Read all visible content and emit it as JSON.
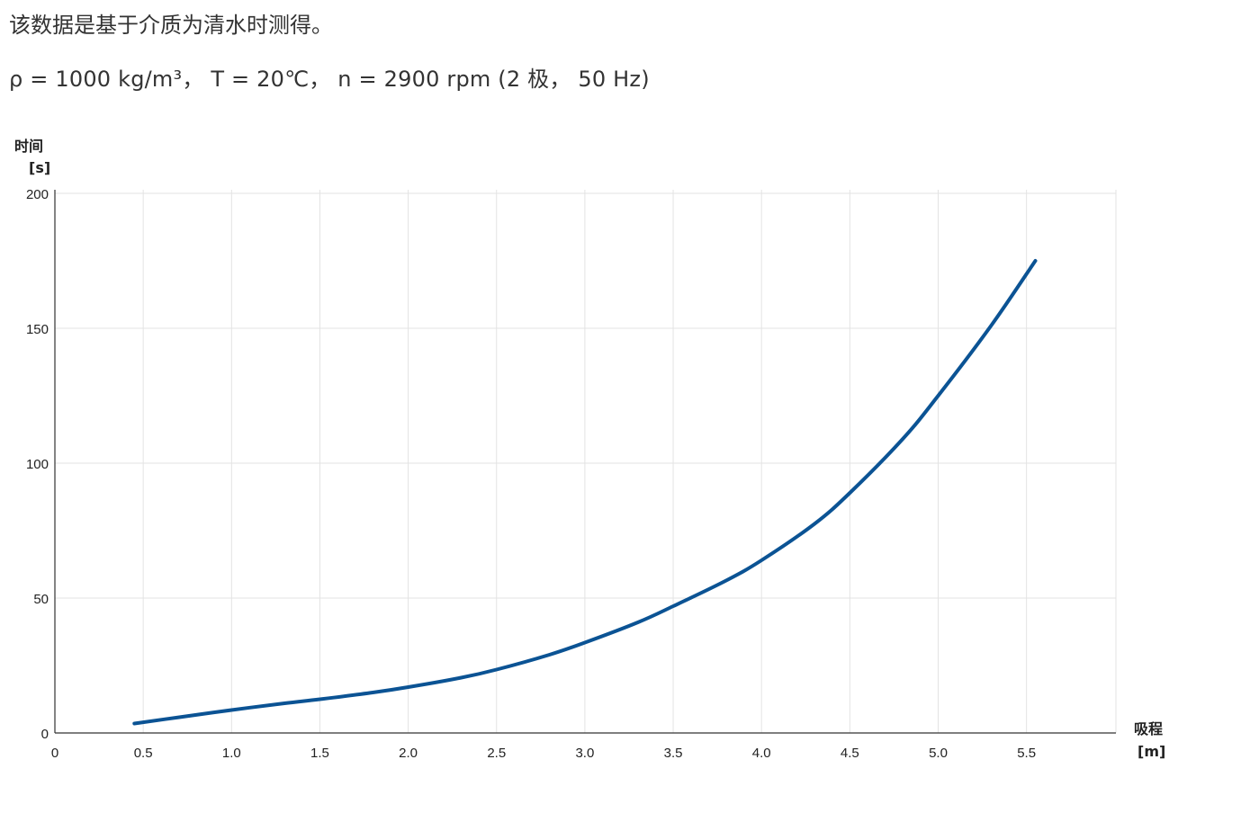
{
  "notes": {
    "line1": "该数据是基于介质为清水时测得。",
    "line2": "ρ = 1000 kg/m³，  T = 20℃，  n = 2900 rpm (2 极，  50 Hz)"
  },
  "chart_data": {
    "type": "line",
    "ylabel": "时间",
    "yunit": "[s]",
    "xlabel": "吸程",
    "xunit": "[m]",
    "xlim": [
      0,
      6.0
    ],
    "ylim": [
      0,
      200
    ],
    "x_ticks": [
      "0",
      "0.5",
      "1.0",
      "1.5",
      "2.0",
      "2.5",
      "3.0",
      "3.5",
      "4.0",
      "4.5",
      "5.0",
      "5.5"
    ],
    "y_ticks": [
      "0",
      "50",
      "100",
      "150",
      "200"
    ],
    "grid": true,
    "series": [
      {
        "color": "#0b5394",
        "x": [
          0.45,
          0.7,
          1.0,
          1.3,
          1.5,
          1.8,
          2.0,
          2.3,
          2.5,
          2.8,
          3.0,
          3.3,
          3.5,
          3.8,
          4.0,
          4.3,
          4.5,
          4.8,
          5.0,
          5.3,
          5.55
        ],
        "y": [
          3.5,
          5.8,
          8.5,
          11.0,
          12.5,
          15.0,
          17.0,
          20.5,
          23.5,
          29.0,
          33.5,
          41.0,
          47.0,
          56.5,
          64.0,
          77.5,
          89.0,
          109.0,
          125.0,
          151.0,
          175.0
        ]
      }
    ]
  }
}
